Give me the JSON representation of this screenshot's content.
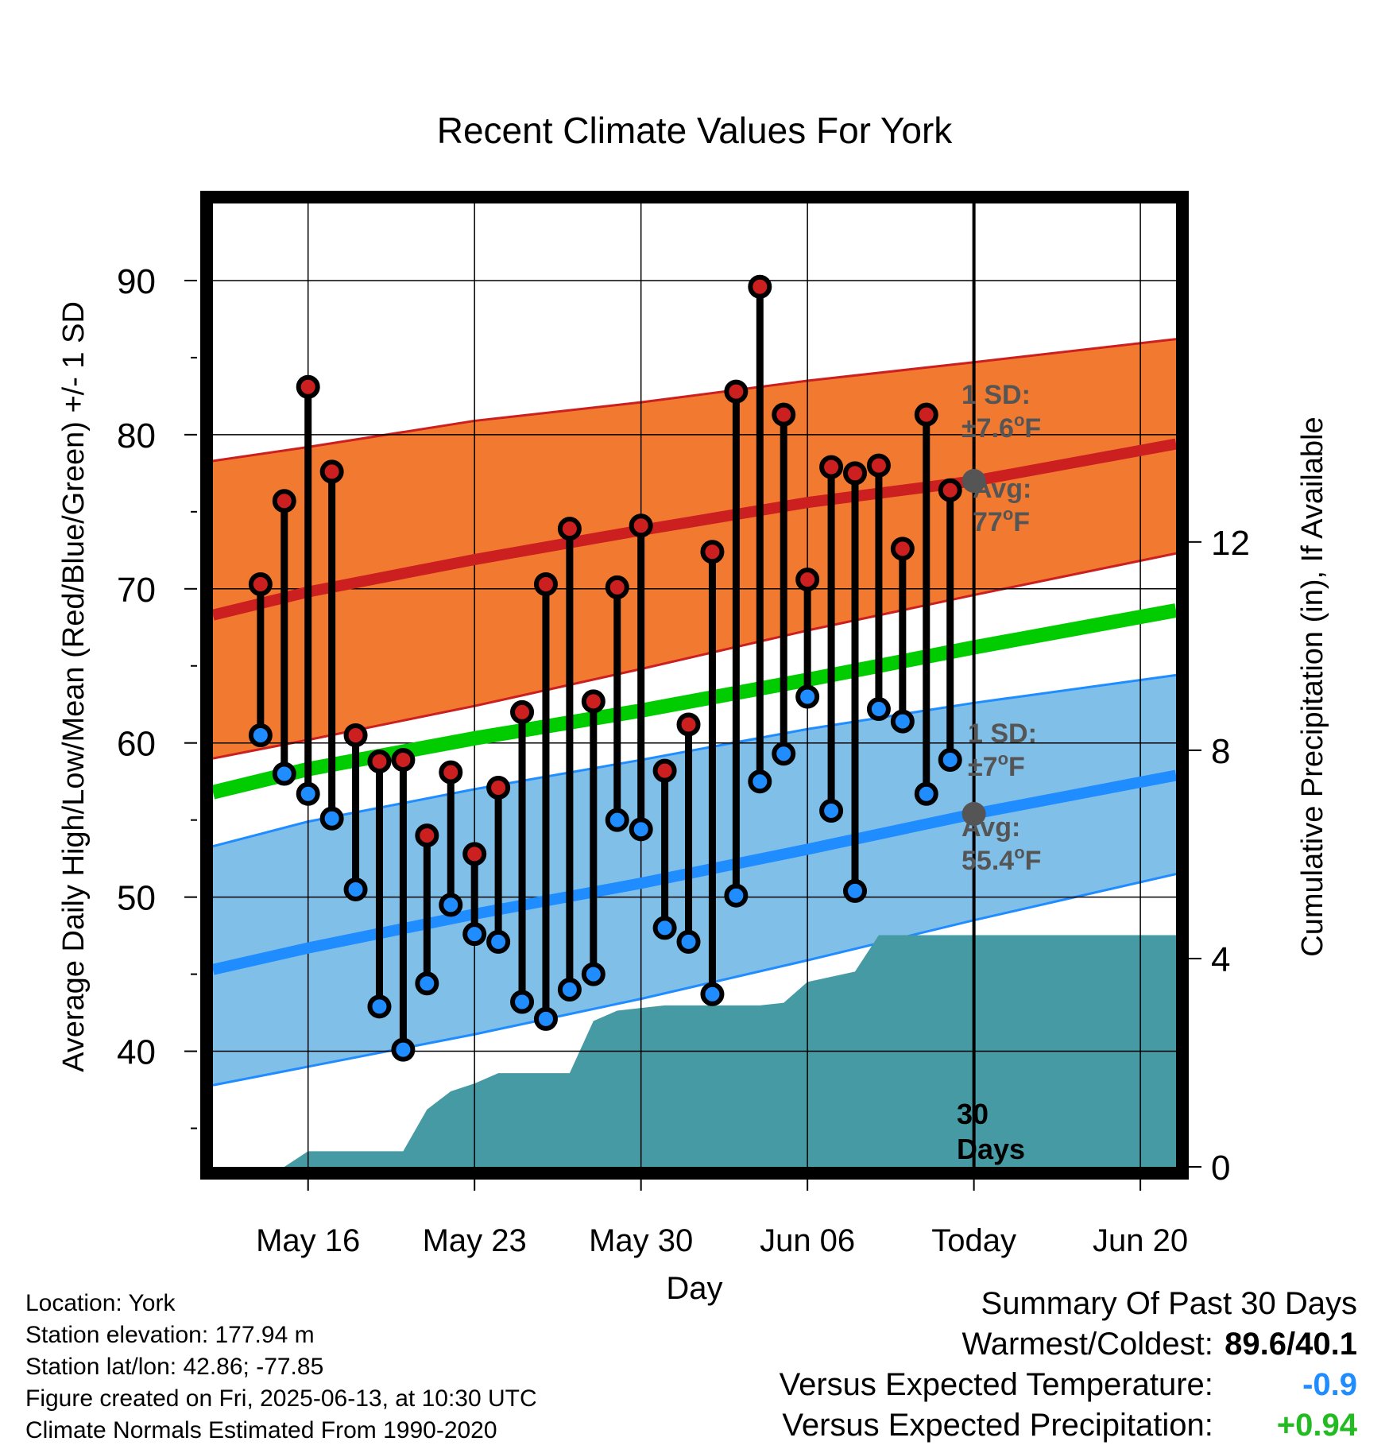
{
  "chart_data": {
    "type": "line",
    "title": "Recent Climate Values For York",
    "xlabel": "Day",
    "ylabel": "Average Daily High/Low/Mean (Red/Blue/Green) +/- 1 SD",
    "y2label": "Cumulative Precipitation (in), If Available",
    "x_domain_days": [
      -31,
      9.5
    ],
    "x_ticks": [
      {
        "day": -27,
        "label": "May 16"
      },
      {
        "day": -20,
        "label": "May 23"
      },
      {
        "day": -13,
        "label": "May 30"
      },
      {
        "day": -6,
        "label": "Jun 06"
      },
      {
        "day": 1,
        "label": "Today"
      },
      {
        "day": 8,
        "label": "Jun 20"
      }
    ],
    "ylim": [
      32.5,
      95
    ],
    "y_ticks": [
      40,
      50,
      60,
      70,
      80,
      90
    ],
    "y2lim": [
      0,
      18.5
    ],
    "y2_ticks": [
      0,
      4,
      8,
      12
    ],
    "grid": true,
    "today_day": 1,
    "today_label": [
      "30",
      "Days"
    ],
    "normals": {
      "high_avg": {
        "day": [
          -31,
          -27,
          -20,
          -13,
          -6,
          1,
          9.5
        ],
        "value": [
          68.3,
          69.8,
          71.9,
          73.8,
          75.6,
          77.0,
          79.4
        ]
      },
      "high_plus_sd": {
        "day": [
          -31,
          -27,
          -20,
          -13,
          -6,
          1,
          9.5
        ],
        "value": [
          78.3,
          79.2,
          80.9,
          82.1,
          83.5,
          84.7,
          86.2
        ]
      },
      "high_minus_sd": {
        "day": [
          -31,
          -27,
          -20,
          -13,
          -6,
          1,
          9.5
        ],
        "value": [
          59.0,
          60.2,
          62.4,
          64.8,
          67.3,
          69.6,
          72.3
        ]
      },
      "mean": {
        "day": [
          -31,
          -27,
          -20,
          -13,
          -6,
          1,
          9.5
        ],
        "value": [
          56.8,
          58.3,
          60.3,
          62.1,
          64.1,
          66.2,
          68.6
        ]
      },
      "low_avg": {
        "day": [
          -31,
          -27,
          -20,
          -13,
          -6,
          1,
          9.5
        ],
        "value": [
          45.3,
          46.7,
          48.9,
          50.9,
          53.1,
          55.4,
          57.9
        ]
      },
      "low_plus_sd": {
        "day": [
          -31,
          -27,
          -20,
          -13,
          -6,
          1,
          9.5
        ],
        "value": [
          53.3,
          54.9,
          57.0,
          58.9,
          60.9,
          62.6,
          64.4
        ]
      },
      "low_minus_sd": {
        "day": [
          -31,
          -27,
          -20,
          -13,
          -6,
          1,
          9.5
        ],
        "value": [
          37.8,
          39.0,
          41.1,
          43.4,
          45.9,
          48.5,
          51.5
        ]
      }
    },
    "observed": {
      "day": [
        -29,
        -28,
        -27,
        -26,
        -25,
        -24,
        -23,
        -22,
        -21,
        -20,
        -19,
        -18,
        -17,
        -16,
        -15,
        -14,
        -13,
        -12,
        -11,
        -10,
        -9,
        -8,
        -7,
        -6,
        -5,
        -4,
        -3,
        -2,
        -1,
        0
      ],
      "high": [
        70.3,
        75.7,
        83.1,
        77.6,
        60.5,
        58.8,
        58.9,
        54.0,
        58.1,
        52.8,
        57.1,
        62.0,
        70.3,
        73.9,
        62.7,
        70.1,
        74.1,
        58.2,
        61.2,
        72.4,
        82.8,
        89.6,
        81.3,
        70.6,
        77.9,
        77.5,
        78.0,
        72.6,
        81.3,
        76.4
      ],
      "low": [
        60.5,
        58.0,
        56.7,
        55.1,
        50.5,
        42.9,
        40.1,
        44.4,
        49.5,
        47.6,
        47.1,
        43.2,
        42.1,
        44.0,
        45.0,
        55.0,
        54.4,
        48.0,
        47.1,
        43.7,
        50.1,
        57.5,
        59.3,
        63.0,
        55.6,
        50.4,
        62.2,
        61.4,
        56.7,
        58.9
      ]
    },
    "precip_cumulative": {
      "day": [
        -31,
        -28,
        -27,
        -26,
        -24,
        -23,
        -22,
        -21,
        -20,
        -19,
        -18,
        -16,
        -15,
        -14,
        -13,
        -12,
        -11,
        -10,
        -9,
        -8,
        -7,
        -6,
        -5,
        -4,
        -3,
        -2,
        1,
        9.5
      ],
      "value": [
        0,
        0,
        0.3,
        0.3,
        0.3,
        0.3,
        1.1,
        1.45,
        1.6,
        1.8,
        1.8,
        1.8,
        2.8,
        3.0,
        3.05,
        3.1,
        3.1,
        3.1,
        3.1,
        3.1,
        3.15,
        3.55,
        3.65,
        3.75,
        4.45,
        4.45,
        4.45,
        4.45
      ]
    },
    "annotations": {
      "high_sd_label": "1 SD:",
      "high_sd_value": "±7.6",
      "high_avg_label": "Avg:",
      "high_avg_value": "77",
      "low_sd_label": "1 SD:",
      "low_sd_value": "±7",
      "low_avg_label": "Avg:",
      "low_avg_value": "55.4",
      "degree_sign": "o",
      "unit": "F"
    },
    "colors": {
      "high": "#cc1f1f",
      "high_band": "#f27a30",
      "low": "#1f8cff",
      "low_band": "#80bfe8",
      "mean": "#00cc00",
      "precip": "#469aa3",
      "annotation": "#555555"
    }
  },
  "info": {
    "location": "Location: York",
    "elevation": "Station elevation: 177.94 m",
    "latlon": "Station lat/lon: 42.86; -77.85",
    "created": "Figure created on Fri, 2025-06-13, at 10:30 UTC",
    "normals": "Climate Normals Estimated From 1990-2020"
  },
  "summary": {
    "title": "Summary Of Past 30 Days",
    "warmest_coldest_label": "Warmest/Coldest:",
    "warmest_coldest_value": "89.6/40.1",
    "temp_label": "Versus Expected Temperature:",
    "temp_value": "-0.9",
    "precip_label": "Versus Expected Precipitation:",
    "precip_value": "+0.94",
    "temp_color": "#1f8cff",
    "precip_color": "#22bb22"
  }
}
